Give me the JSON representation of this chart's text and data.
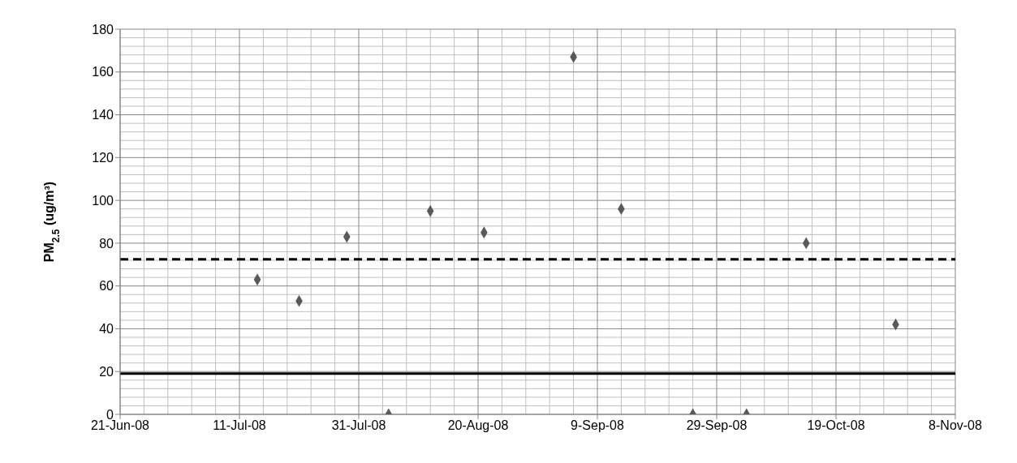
{
  "chart_data": {
    "type": "scatter",
    "ylabel": "PM$_{2.5}$ (ug/m³)",
    "x": [
      "2008-07-14",
      "2008-07-21",
      "2008-07-29",
      "2008-08-05",
      "2008-08-12",
      "2008-08-21",
      "2008-09-05",
      "2008-09-13",
      "2008-09-25",
      "2008-10-04",
      "2008-10-14",
      "2008-10-29"
    ],
    "series": [
      {
        "color": "#595959",
        "values": [
          63,
          53,
          83,
          0,
          95,
          85,
          167,
          96,
          0,
          0,
          80,
          42
        ]
      }
    ],
    "marker": "diamond",
    "xlim": [
      "2008-06-21",
      "2008-11-08"
    ],
    "xticks": [
      {
        "value": "2008-06-21",
        "label": "21-Jun-08"
      },
      {
        "value": "2008-07-11",
        "label": "11-Jul-08"
      },
      {
        "value": "2008-07-31",
        "label": "31-Jul-08"
      },
      {
        "value": "2008-08-20",
        "label": "20-Aug-08"
      },
      {
        "value": "2008-09-09",
        "label": "9-Sep-08"
      },
      {
        "value": "2008-09-29",
        "label": "29-Sep-08"
      },
      {
        "value": "2008-10-19",
        "label": "19-Oct-08"
      },
      {
        "value": "2008-11-08",
        "label": "8-Nov-08"
      }
    ],
    "ylim": [
      0,
      180
    ],
    "yticks": [
      0,
      20,
      40,
      60,
      80,
      100,
      120,
      140,
      160,
      180
    ],
    "grid": true,
    "ref_lines": [
      {
        "axis": "y",
        "value": 72.5,
        "color": "#000000",
        "line_style": "dashed"
      },
      {
        "axis": "y",
        "value": 19,
        "color": "#000000",
        "line_style": "solid"
      }
    ]
  }
}
